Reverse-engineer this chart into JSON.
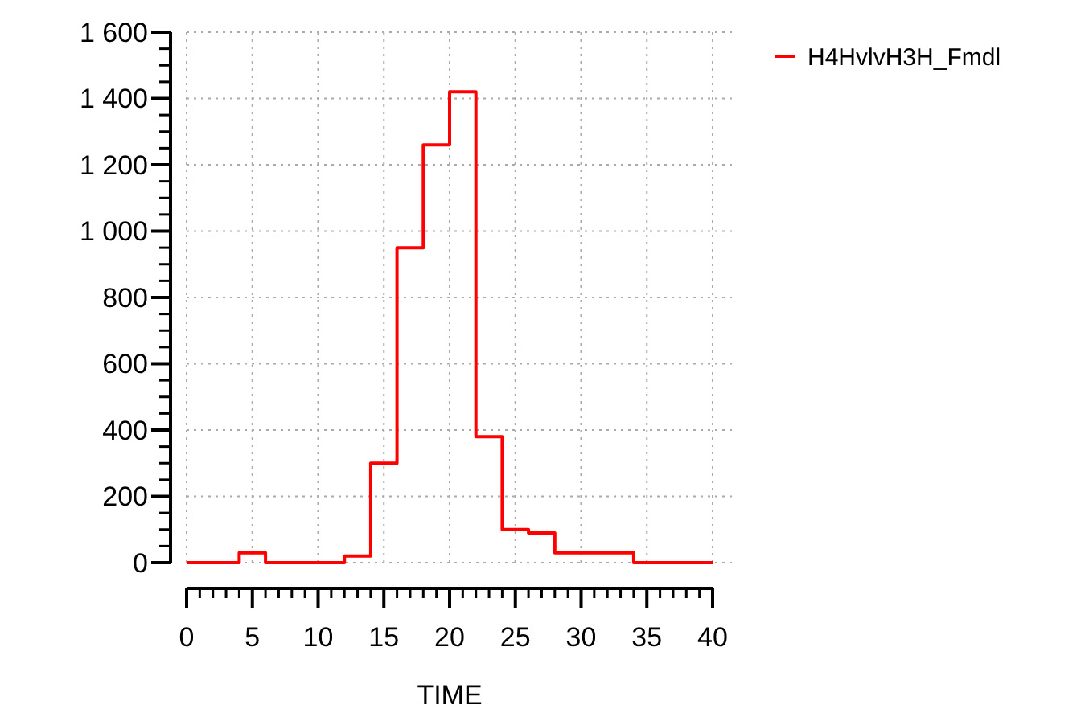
{
  "chart_data": {
    "type": "step",
    "xlabel": "TIME",
    "x": [
      0,
      4,
      6,
      12,
      14,
      16,
      18,
      20,
      22,
      24,
      26,
      28,
      34,
      40
    ],
    "series": [
      {
        "name": "H4HvlvH3H_Fmdl",
        "color": "#ff0000",
        "values": [
          0,
          30,
          0,
          20,
          300,
          950,
          1260,
          1420,
          380,
          100,
          90,
          30,
          0,
          0
        ]
      }
    ],
    "xlim": [
      0,
      40
    ],
    "xticks": [
      0,
      5,
      10,
      15,
      20,
      25,
      30,
      35,
      40
    ],
    "ylim": [
      0,
      1600
    ],
    "yticks": [
      0,
      200,
      400,
      600,
      800,
      {
        "value": 1000,
        "label": "1 000"
      },
      {
        "value": 1200,
        "label": "1 200"
      },
      {
        "value": 1400,
        "label": "1 400"
      },
      {
        "value": 1600,
        "label": "1 600"
      }
    ],
    "grid": true,
    "legend": "top right",
    "line_style": "solid"
  }
}
